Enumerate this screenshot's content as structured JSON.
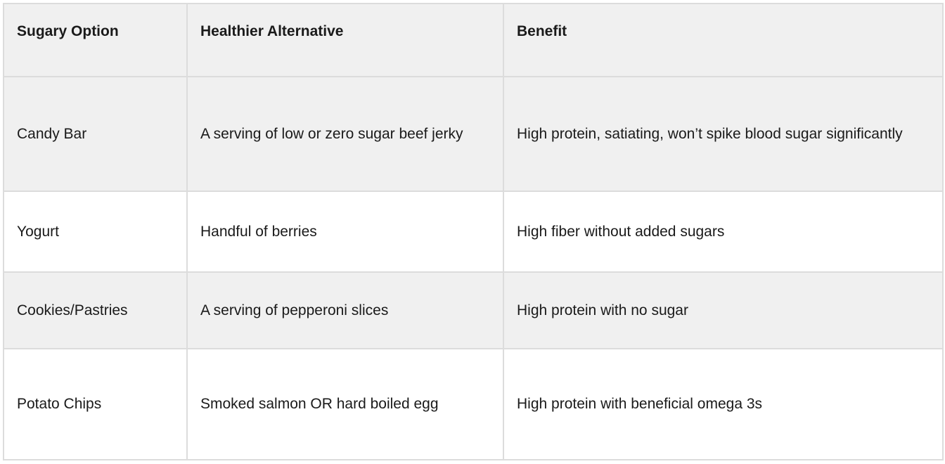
{
  "colors": {
    "header_bg": "#f0f0f0",
    "stripe_bg": "#f0f0f0",
    "border_color": "#dcdcdc",
    "text_color": "#1a1a1a"
  },
  "table": {
    "columns": [
      "Sugary Option",
      "Healthier Alternative",
      "Benefit"
    ],
    "rows": [
      [
        "Candy Bar",
        "A serving of low or zero sugar beef jerky",
        "High protein, satiating, won’t spike blood sugar significantly"
      ],
      [
        "Yogurt",
        "Handful of berries",
        "High fiber without added sugars"
      ],
      [
        "Cookies/Pastries",
        "A serving of pepperoni slices",
        "High protein with no sugar"
      ],
      [
        "Potato Chips",
        "Smoked salmon OR hard boiled egg",
        "High protein with beneficial omega 3s"
      ]
    ]
  }
}
